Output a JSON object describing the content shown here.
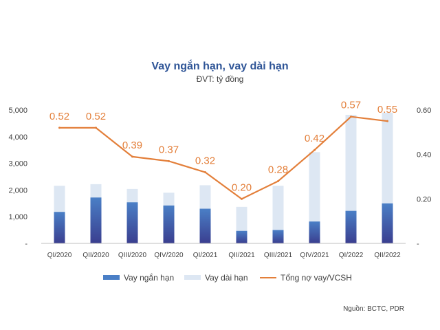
{
  "title": "Vay ngắn hạn, vay dài hạn",
  "subtitle": "ĐVT: tỷ đồng",
  "source": "Nguồn: BCTC, PDR",
  "colors": {
    "short_bar_top": "#4a7fc6",
    "short_bar_bottom": "#3a3e8f",
    "long_bar": "#dde7f3",
    "line": "#e37f3a",
    "title": "#2f5597"
  },
  "chart_data": {
    "type": "bar",
    "categories": [
      "QI/2020",
      "QII/2020",
      "QIII/2020",
      "QIV/2020",
      "QI/2021",
      "QII/2021",
      "QIII/2021",
      "QIV/2021",
      "QI/2022",
      "QII/2022"
    ],
    "series": [
      {
        "name": "Vay ngắn hạn",
        "type": "bar",
        "stacked": true,
        "axis": "left",
        "values": [
          1180,
          1720,
          1540,
          1420,
          1300,
          470,
          500,
          820,
          1220,
          1500
        ]
      },
      {
        "name": "Vay dài hạn",
        "type": "bar",
        "stacked": true,
        "axis": "left",
        "values": [
          980,
          500,
          500,
          480,
          880,
          900,
          1660,
          2600,
          3600,
          3400
        ]
      },
      {
        "name": "Tổng nợ vay/VCSH",
        "type": "line",
        "axis": "right",
        "values": [
          0.52,
          0.52,
          0.39,
          0.37,
          0.32,
          0.2,
          0.28,
          0.42,
          0.57,
          0.55
        ],
        "labels": [
          "0.52",
          "0.52",
          "0.39",
          "0.37",
          "0.32",
          "0.20",
          "0.28",
          "0.42",
          "0.57",
          "0.55"
        ]
      }
    ],
    "y_left": {
      "ylim": [
        0,
        5000
      ],
      "ticks": [
        0,
        1000,
        2000,
        3000,
        4000,
        5000
      ],
      "tick_labels": [
        "-",
        "1,000",
        "2,000",
        "3,000",
        "4,000",
        "5,000"
      ]
    },
    "y_right": {
      "ylim": [
        0,
        0.6
      ],
      "ticks": [
        0,
        0.2,
        0.4,
        0.6
      ],
      "tick_labels": [
        "-",
        "0.20",
        "0.40",
        "0.60"
      ]
    },
    "grid": false,
    "legend": "bottom"
  }
}
